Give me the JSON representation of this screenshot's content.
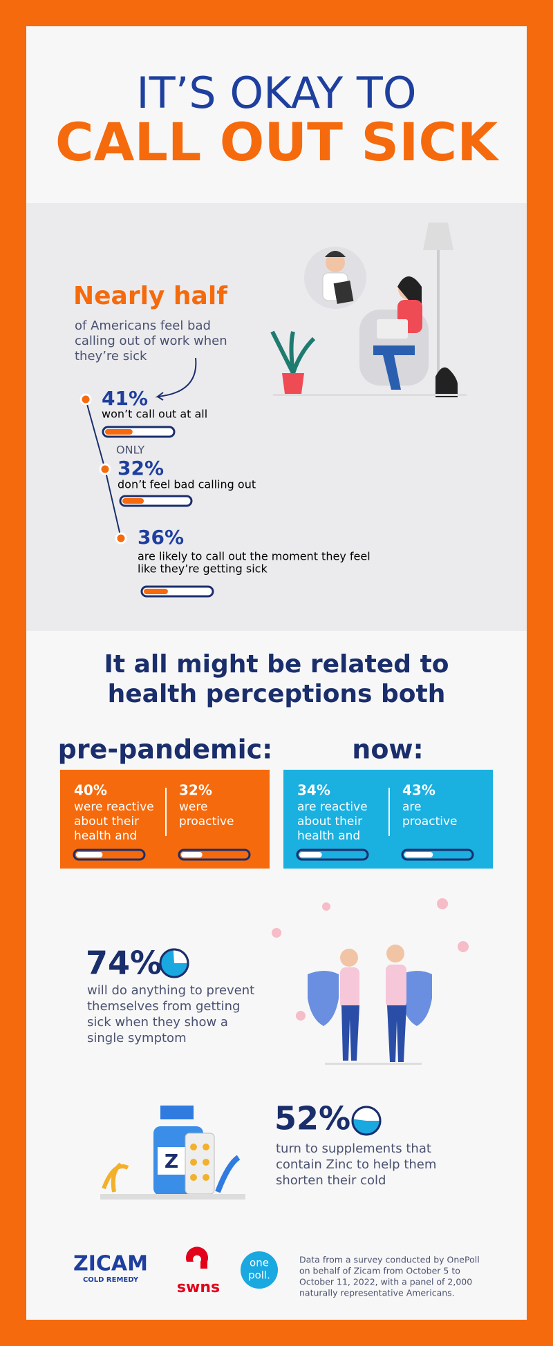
{
  "header": {
    "line1": "IT’S OKAY TO",
    "line2": "CALL OUT SICK"
  },
  "section1": {
    "headline": "Nearly half",
    "subtext": [
      "of Americans feel bad",
      "calling out of work when",
      "they’re sick"
    ],
    "stats": [
      {
        "value": 41,
        "label": "41%",
        "text": [
          "won’t call out at all"
        ]
      },
      {
        "qualifier": "ONLY",
        "value": 32,
        "label": "32%",
        "text": [
          "don’t feel bad calling out"
        ]
      },
      {
        "value": 36,
        "label": "36%",
        "text": [
          "are likely to call out the moment they feel",
          "like they’re getting sick"
        ]
      }
    ]
  },
  "section2": {
    "heading": [
      "It all might be related to",
      "health perceptions both"
    ],
    "groups": [
      {
        "title": "pre-pandemic:",
        "items": [
          {
            "value": 40,
            "label": "40%",
            "text": [
              "were reactive",
              "about their",
              "health and"
            ]
          },
          {
            "value": 32,
            "label": "32%",
            "text": [
              "were",
              "proactive"
            ]
          }
        ]
      },
      {
        "title": "now:",
        "items": [
          {
            "value": 34,
            "label": "34%",
            "text": [
              "are reactive",
              "about their",
              "health and"
            ]
          },
          {
            "value": 43,
            "label": "43%",
            "text": [
              "are",
              "proactive"
            ]
          }
        ]
      }
    ]
  },
  "highlights": [
    {
      "value": 74,
      "label": "74%",
      "text": [
        "will do anything to prevent",
        "themselves from getting",
        "sick when they show a",
        "single symptom"
      ]
    },
    {
      "value": 52,
      "label": "52%",
      "text": [
        "turn to supplements that",
        "contain Zinc to help them",
        "shorten their cold"
      ]
    }
  ],
  "footer": {
    "zicam": "ZICAM",
    "zicam_sub": "COLD REMEDY",
    "swns": "swns",
    "onepoll": [
      "one",
      "poll."
    ],
    "note": [
      "Data from a survey conducted by OnePoll",
      "on behalf of Zicam from October 5 to",
      "October 11, 2022, with a panel of 2,000",
      "naturally representative Americans."
    ]
  }
}
